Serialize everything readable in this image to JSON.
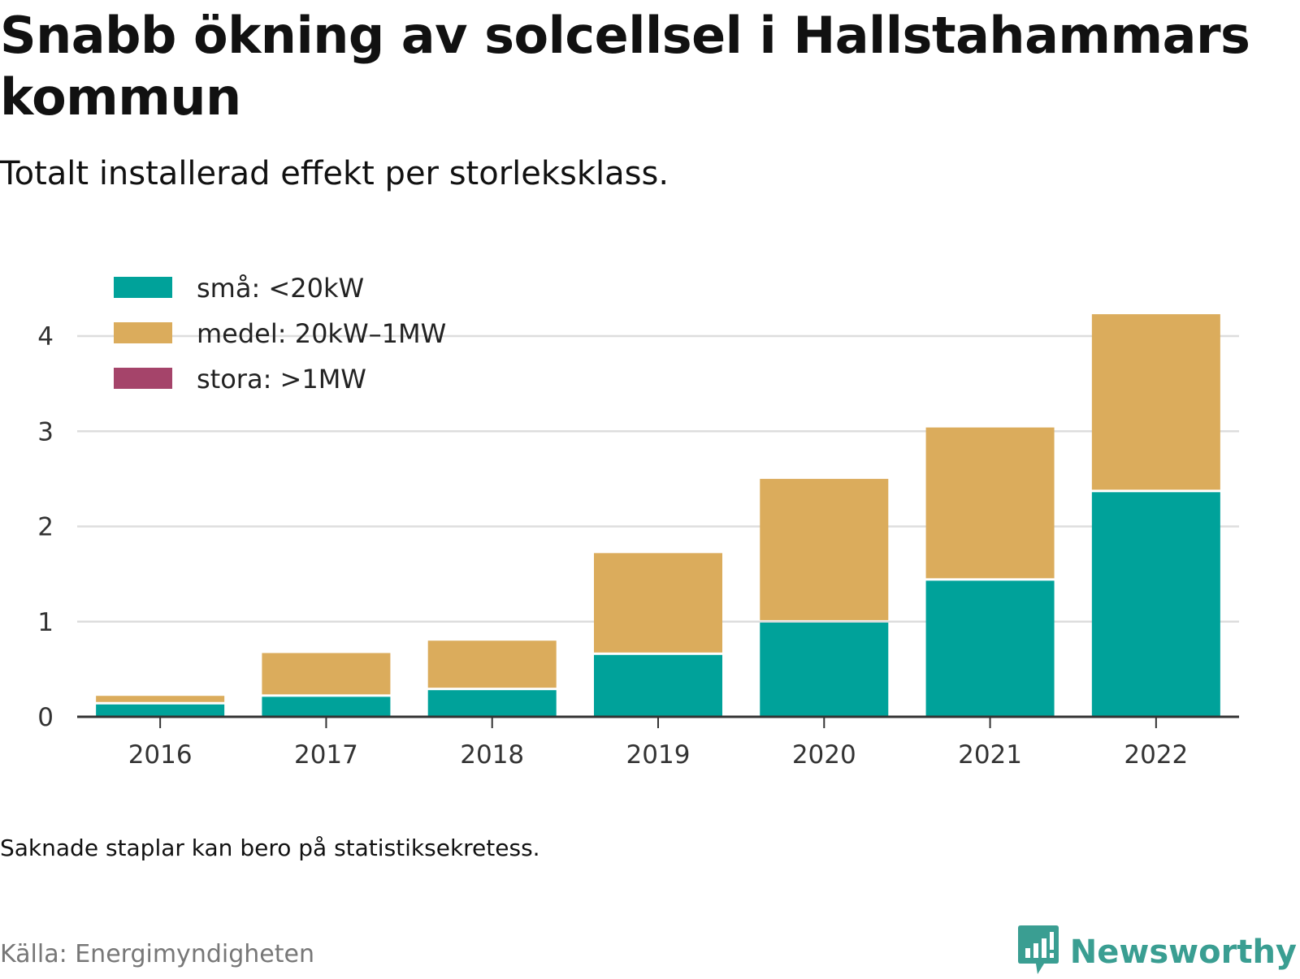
{
  "header": {
    "title": "Snabb ökning av solcellsel i Hallstahammars kommun",
    "subtitle": "Totalt installerad effekt per storleksklass."
  },
  "footer": {
    "note": "Saknade staplar kan bero på statistiksekretess.",
    "source": "Källa: Energimyndigheten",
    "brand": "Newsworthy",
    "brand_icon": "newsworthy-logo-icon"
  },
  "colors": {
    "small": "#00a29a",
    "medium": "#dbac5c",
    "large": "#a5446a",
    "grid": "#dddddd",
    "axis": "#333333",
    "brand": "#3a9e92"
  },
  "chart_data": {
    "type": "bar",
    "stacked": true,
    "categories": [
      "2016",
      "2017",
      "2018",
      "2019",
      "2020",
      "2021",
      "2022"
    ],
    "series": [
      {
        "name": "små: <20kW",
        "color": "#00a29a",
        "values": [
          0.13,
          0.21,
          0.28,
          0.65,
          0.99,
          1.43,
          2.36
        ]
      },
      {
        "name": "medel: 20kW–1MW",
        "color": "#dbac5c",
        "values": [
          0.09,
          0.46,
          0.52,
          1.07,
          1.51,
          1.61,
          1.87
        ]
      },
      {
        "name": "stora: >1MW",
        "color": "#a5446a",
        "values": [
          0,
          0,
          0,
          0,
          0,
          0,
          0
        ]
      }
    ],
    "yticks": [
      0,
      1,
      2,
      3,
      4
    ],
    "ylim": [
      0,
      4.35
    ],
    "xlabel": "",
    "ylabel": "",
    "grid": true,
    "legend": "top-left"
  }
}
